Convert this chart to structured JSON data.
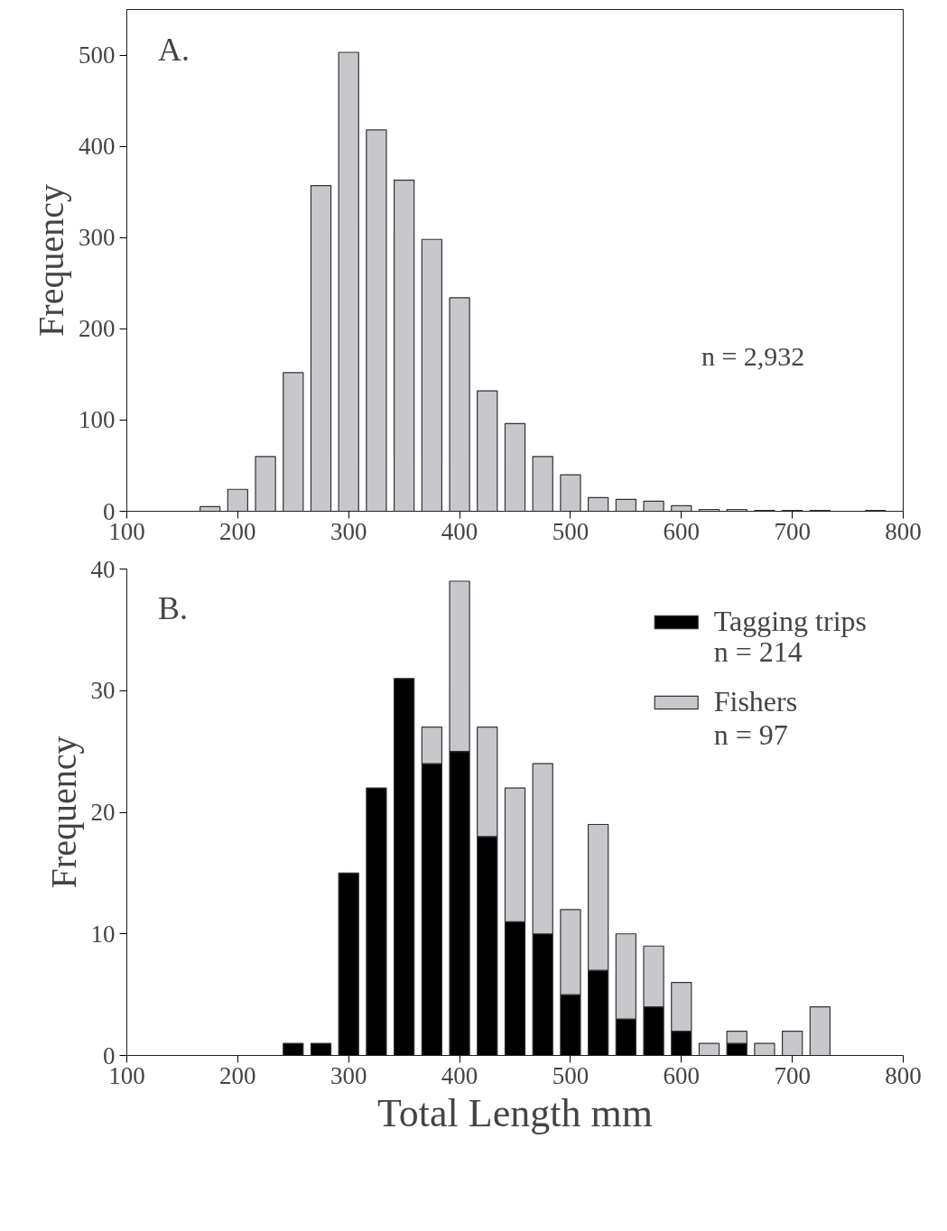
{
  "chart_data": [
    {
      "type": "bar",
      "ylabel": "Frequency",
      "annotations": [
        "A.",
        "n = 2,932"
      ],
      "x": [
        175,
        200,
        225,
        250,
        275,
        300,
        325,
        350,
        375,
        400,
        425,
        450,
        475,
        500,
        525,
        550,
        575,
        600,
        625,
        650,
        675,
        700,
        725,
        750,
        775
      ],
      "series": [
        {
          "color": "#c8c8cc",
          "values": [
            5,
            24,
            60,
            152,
            357,
            503,
            418,
            363,
            298,
            234,
            132,
            96,
            60,
            40,
            15,
            13,
            11,
            6,
            2,
            2,
            1,
            1,
            1,
            0,
            1
          ]
        }
      ],
      "xlim": [
        100,
        800
      ],
      "xticks": [
        100,
        200,
        300,
        400,
        500,
        600,
        700,
        800
      ],
      "ylim": [
        0,
        550
      ],
      "yticks": [
        0,
        100,
        200,
        300,
        400,
        500
      ],
      "grid": false,
      "legend": false
    },
    {
      "type": "bar",
      "stacked": true,
      "xlabel": "Total Length mm",
      "ylabel": "Frequency",
      "annotations": [
        "B.",
        "n = 214",
        "n = 97"
      ],
      "x": [
        250,
        275,
        300,
        325,
        350,
        375,
        400,
        425,
        450,
        475,
        500,
        525,
        550,
        575,
        600,
        625,
        650,
        675,
        700,
        725
      ],
      "series": [
        {
          "name": "Tagging trips",
          "color": "#000000",
          "values": [
            1,
            1,
            15,
            22,
            31,
            24,
            25,
            18,
            11,
            10,
            5,
            7,
            3,
            4,
            2,
            0,
            1,
            0,
            0,
            0
          ]
        },
        {
          "name": "Fishers",
          "color": "#c8c8cc",
          "values": [
            0,
            0,
            0,
            0,
            0,
            3,
            14,
            9,
            11,
            14,
            7,
            12,
            7,
            5,
            4,
            1,
            1,
            1,
            2,
            4
          ]
        }
      ],
      "xlim": [
        100,
        800
      ],
      "xticks": [
        100,
        200,
        300,
        400,
        500,
        600,
        700,
        800
      ],
      "ylim": [
        0,
        40
      ],
      "yticks": [
        0,
        10,
        20,
        30,
        40
      ],
      "grid": false,
      "legend": "top right"
    }
  ]
}
